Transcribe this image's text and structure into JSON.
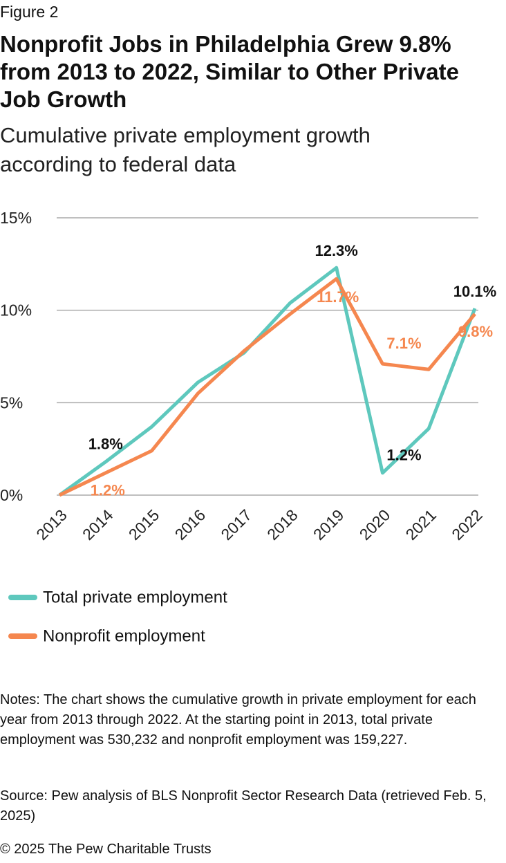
{
  "figure_label": "Figure 2",
  "chart_data": {
    "type": "line",
    "title": "Nonprofit Jobs in Philadelphia Grew 9.8% from 2013 to 2022, Similar to Other Private Job Growth",
    "subtitle": "Cumulative private employment growth according to federal data",
    "categories": [
      "2013",
      "2014",
      "2015",
      "2016",
      "2017",
      "2018",
      "2019",
      "2020",
      "2021",
      "2022"
    ],
    "series": [
      {
        "name": "Total private employment",
        "color": "#5ec8bd",
        "values": [
          0,
          1.8,
          3.7,
          6.1,
          7.7,
          10.4,
          12.3,
          1.2,
          3.6,
          10.1
        ],
        "value_labels": [
          null,
          "1.8%",
          null,
          null,
          null,
          null,
          "12.3%",
          "1.2%",
          null,
          "10.1%"
        ],
        "label_color": "#111111"
      },
      {
        "name": "Nonprofit employment",
        "color": "#f5874f",
        "values": [
          0,
          1.2,
          2.4,
          5.5,
          7.8,
          9.8,
          11.7,
          7.1,
          6.8,
          9.8
        ],
        "value_labels": [
          null,
          "1.2%",
          null,
          null,
          null,
          null,
          "11.7%",
          "7.1%",
          null,
          "9.8%"
        ],
        "label_color": "#f5874f"
      }
    ],
    "ylim": [
      0,
      15
    ],
    "yticks": [
      {
        "value": 0,
        "label": "0%"
      },
      {
        "value": 5,
        "label": "5%"
      },
      {
        "value": 10,
        "label": "10%"
      },
      {
        "value": 15,
        "label": "15%"
      }
    ],
    "grid": true
  },
  "notes": "Notes: The chart shows the cumulative growth in private employment for each year from 2013 through 2022. At the starting point in 2013, total private employment was 530,232 and nonprofit employment was 159,227.",
  "source": "Source: Pew analysis of BLS Nonprofit Sector Research Data (retrieved Feb. 5, 2025)",
  "copyright": "© 2025 The Pew Charitable Trusts"
}
